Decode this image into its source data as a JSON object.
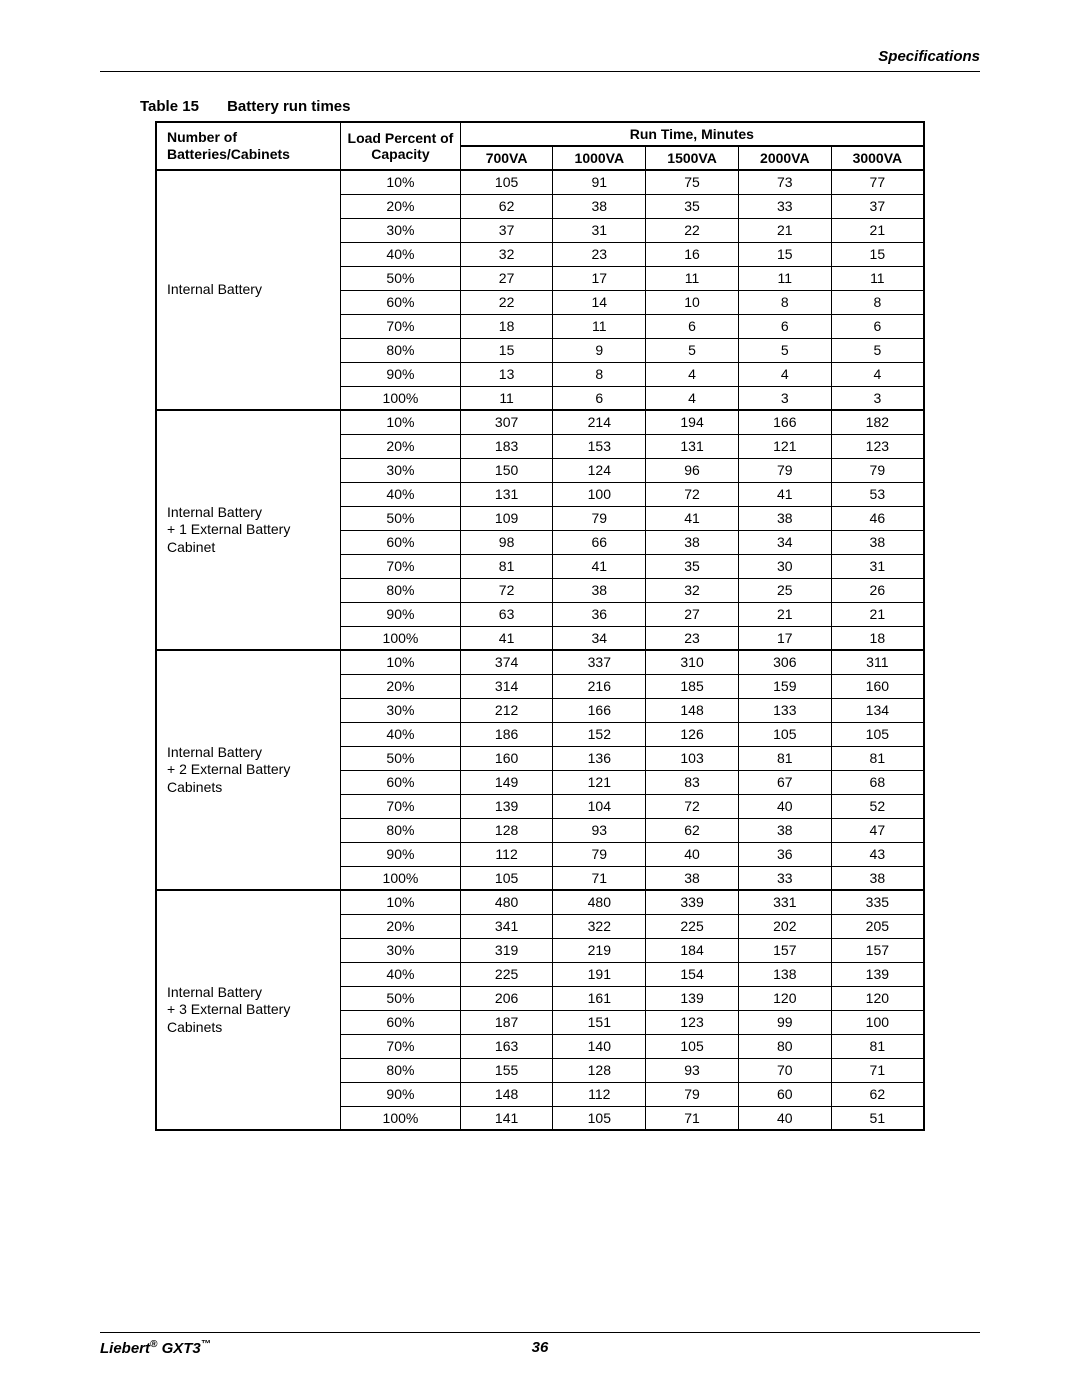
{
  "header": {
    "section_title": "Specifications"
  },
  "caption": {
    "label": "Table 15",
    "title": "Battery run times"
  },
  "table": {
    "type": "table",
    "header1_col1": "Number of Batteries/Cabinets",
    "header1_col2": "Load Percent of Capacity",
    "header1_span": "Run Time, Minutes",
    "va_columns": [
      "700VA",
      "1000VA",
      "1500VA",
      "2000VA",
      "3000VA"
    ],
    "loads": [
      "10%",
      "20%",
      "30%",
      "40%",
      "50%",
      "60%",
      "70%",
      "80%",
      "90%",
      "100%"
    ],
    "groups": [
      {
        "label": "Internal Battery",
        "rows": [
          [
            105,
            91,
            75,
            73,
            77
          ],
          [
            62,
            38,
            35,
            33,
            37
          ],
          [
            37,
            31,
            22,
            21,
            21
          ],
          [
            32,
            23,
            16,
            15,
            15
          ],
          [
            27,
            17,
            11,
            11,
            11
          ],
          [
            22,
            14,
            10,
            8,
            8
          ],
          [
            18,
            11,
            6,
            6,
            6
          ],
          [
            15,
            9,
            5,
            5,
            5
          ],
          [
            13,
            8,
            4,
            4,
            4
          ],
          [
            11,
            6,
            4,
            3,
            3
          ]
        ]
      },
      {
        "label": "Internal Battery + 1 External Battery Cabinet",
        "rows": [
          [
            307,
            214,
            194,
            166,
            182
          ],
          [
            183,
            153,
            131,
            121,
            123
          ],
          [
            150,
            124,
            96,
            79,
            79
          ],
          [
            131,
            100,
            72,
            41,
            53
          ],
          [
            109,
            79,
            41,
            38,
            46
          ],
          [
            98,
            66,
            38,
            34,
            38
          ],
          [
            81,
            41,
            35,
            30,
            31
          ],
          [
            72,
            38,
            32,
            25,
            26
          ],
          [
            63,
            36,
            27,
            21,
            21
          ],
          [
            41,
            34,
            23,
            17,
            18
          ]
        ]
      },
      {
        "label": "Internal Battery + 2 External Battery Cabinets",
        "rows": [
          [
            374,
            337,
            310,
            306,
            311
          ],
          [
            314,
            216,
            185,
            159,
            160
          ],
          [
            212,
            166,
            148,
            133,
            134
          ],
          [
            186,
            152,
            126,
            105,
            105
          ],
          [
            160,
            136,
            103,
            81,
            81
          ],
          [
            149,
            121,
            83,
            67,
            68
          ],
          [
            139,
            104,
            72,
            40,
            52
          ],
          [
            128,
            93,
            62,
            38,
            47
          ],
          [
            112,
            79,
            40,
            36,
            43
          ],
          [
            105,
            71,
            38,
            33,
            38
          ]
        ]
      },
      {
        "label": "Internal Battery + 3 External Battery Cabinets",
        "rows": [
          [
            480,
            480,
            339,
            331,
            335
          ],
          [
            341,
            322,
            225,
            202,
            205
          ],
          [
            319,
            219,
            184,
            157,
            157
          ],
          [
            225,
            191,
            154,
            138,
            139
          ],
          [
            206,
            161,
            139,
            120,
            120
          ],
          [
            187,
            151,
            123,
            99,
            100
          ],
          [
            163,
            140,
            105,
            80,
            81
          ],
          [
            155,
            128,
            93,
            70,
            71
          ],
          [
            148,
            112,
            79,
            60,
            62
          ],
          [
            141,
            105,
            71,
            40,
            51
          ]
        ]
      }
    ]
  },
  "footer": {
    "brand_prefix": "Liebert",
    "reg": "®",
    "model": "GXT3",
    "tm": "™",
    "page_number": "36"
  }
}
